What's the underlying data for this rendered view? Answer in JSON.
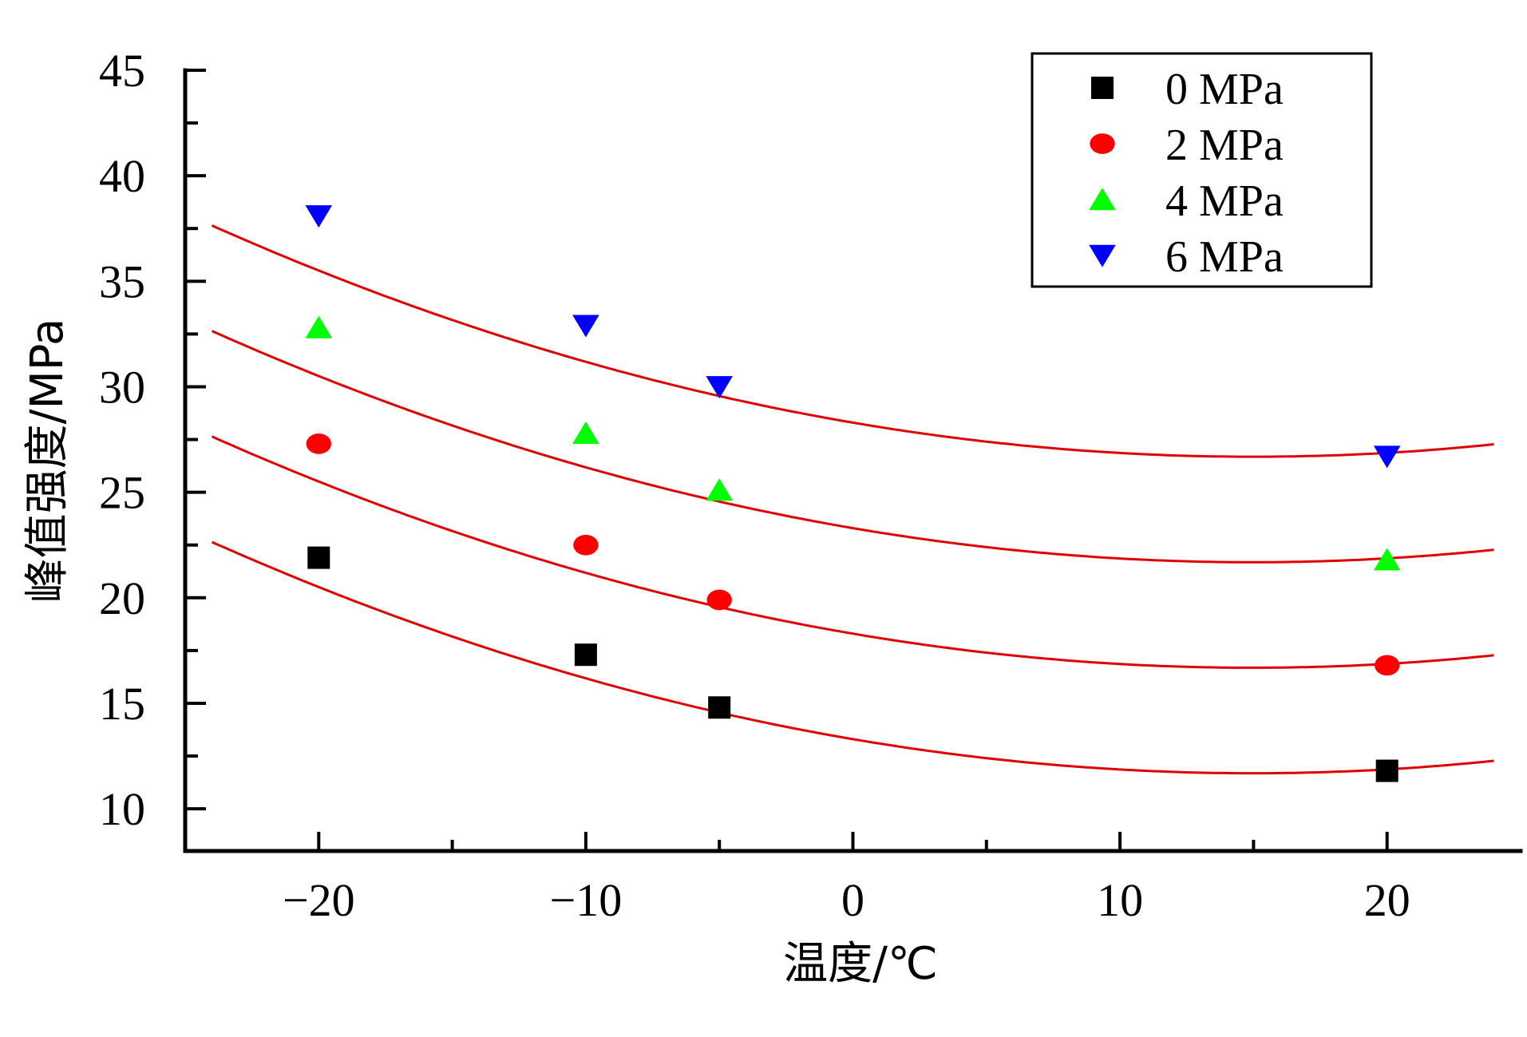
{
  "chart_data": {
    "type": "scatter",
    "title": "",
    "xlabel": "温度/℃",
    "ylabel": "峰值强度/MPa",
    "xlim": [
      -25,
      25
    ],
    "ylim": [
      8,
      45
    ],
    "xticks": [
      -20,
      -10,
      0,
      10,
      20
    ],
    "xtick_labels": [
      "−20",
      "−10",
      "0",
      "10",
      "20"
    ],
    "yticks": [
      10,
      15,
      20,
      25,
      30,
      35,
      40,
      45
    ],
    "legend_position": "top-right",
    "fit_curve_color": "#e00000",
    "series": [
      {
        "name": "0 MPa",
        "marker": "square",
        "color": "#000000",
        "x": [
          -20,
          -10,
          -5,
          20
        ],
        "y": [
          21.9,
          17.3,
          14.8,
          11.8
        ],
        "fit": {
          "type": "quadratic",
          "a": 0.00722,
          "b": -0.216,
          "c": 13.3,
          "range": [
            -24,
            24
          ]
        }
      },
      {
        "name": "2 MPa",
        "marker": "circle",
        "color": "#ff0000",
        "x": [
          -20,
          -10,
          -5,
          20
        ],
        "y": [
          27.3,
          22.5,
          19.9,
          16.8
        ],
        "fit": {
          "type": "quadratic",
          "a": 0.00722,
          "b": -0.216,
          "c": 18.3,
          "range": [
            -24,
            24
          ]
        }
      },
      {
        "name": "4 MPa",
        "marker": "triangle-up",
        "color": "#00ff00",
        "x": [
          -20,
          -10,
          -5,
          20
        ],
        "y": [
          32.8,
          27.8,
          25.1,
          21.8
        ],
        "fit": {
          "type": "quadratic",
          "a": 0.00722,
          "b": -0.216,
          "c": 23.3,
          "range": [
            -24,
            24
          ]
        }
      },
      {
        "name": "6 MPa",
        "marker": "triangle-down",
        "color": "#0000ff",
        "x": [
          -20,
          -10,
          -5,
          20
        ],
        "y": [
          38.1,
          32.9,
          30.0,
          26.7
        ],
        "fit": {
          "type": "quadratic",
          "a": 0.00722,
          "b": -0.216,
          "c": 28.3,
          "range": [
            -24,
            24
          ]
        }
      }
    ]
  }
}
